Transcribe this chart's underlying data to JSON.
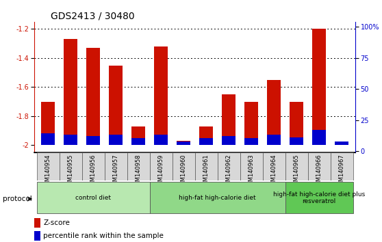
{
  "title": "GDS2413 / 30480",
  "samples": [
    "GSM140954",
    "GSM140955",
    "GSM140956",
    "GSM140957",
    "GSM140958",
    "GSM140959",
    "GSM140960",
    "GSM140961",
    "GSM140962",
    "GSM140963",
    "GSM140964",
    "GSM140965",
    "GSM140966",
    "GSM140967"
  ],
  "zscore": [
    -1.7,
    -1.27,
    -1.33,
    -1.45,
    -1.87,
    -1.32,
    -1.97,
    -1.87,
    -1.65,
    -1.7,
    -1.55,
    -1.7,
    -1.2,
    -2.0
  ],
  "percentile_pct": [
    10,
    9,
    8,
    9,
    6,
    9,
    3,
    6,
    8,
    6,
    9,
    7,
    13,
    3
  ],
  "bar_bottom": -2.0,
  "ylim_left": [
    -2.05,
    -1.15
  ],
  "ylim_right": [
    -1.05,
    104
  ],
  "yticks_left": [
    -2.0,
    -1.8,
    -1.6,
    -1.4,
    -1.2
  ],
  "ytick_labels_left": [
    "-2",
    "-1.8",
    "-1.6",
    "-1.4",
    "-1.2"
  ],
  "yticks_right": [
    0,
    25,
    50,
    75,
    100
  ],
  "ytick_labels_right": [
    "0",
    "25",
    "50",
    "75",
    "100%"
  ],
  "groups": [
    {
      "label": "control diet",
      "start": 0,
      "end": 5,
      "color": "#b8e8b0"
    },
    {
      "label": "high-fat high-calorie diet",
      "start": 5,
      "end": 11,
      "color": "#90d888"
    },
    {
      "label": "high-fat high-calorie diet plus\nresveratrol",
      "start": 11,
      "end": 14,
      "color": "#60c855"
    }
  ],
  "bar_color_red": "#cc1100",
  "bar_color_blue": "#0000cc",
  "bar_width": 0.6,
  "title_fontsize": 10,
  "tick_fontsize": 7,
  "label_fontsize": 7.5
}
